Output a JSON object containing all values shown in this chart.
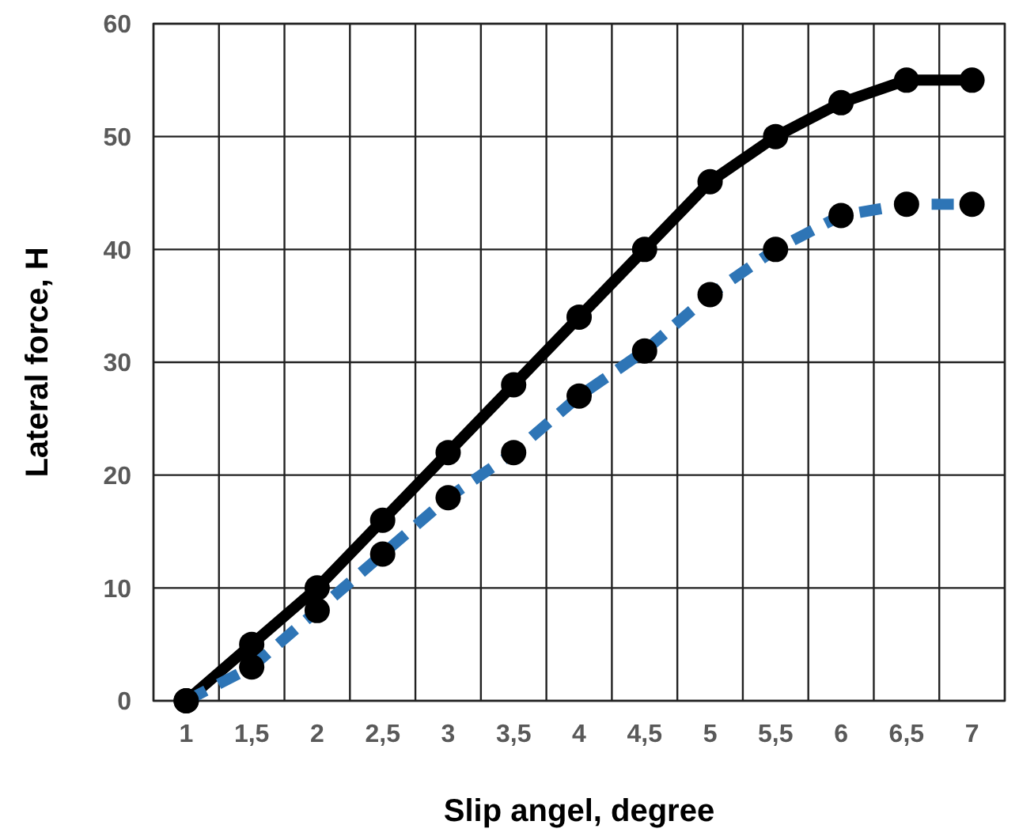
{
  "chart_data": {
    "type": "line",
    "xlabel": "Slip angel, degree",
    "ylabel": "Lateral force, H",
    "categories": [
      "1",
      "1,5",
      "2",
      "2,5",
      "3",
      "3,5",
      "4",
      "4,5",
      "5",
      "5,5",
      "6",
      "6,5",
      "7"
    ],
    "series": [
      {
        "color": "#000000",
        "line_style": "solid",
        "values": [
          0,
          5,
          10,
          16,
          22,
          28,
          34,
          40,
          46,
          50,
          53,
          55,
          55
        ]
      },
      {
        "color": "#2e75b6",
        "line_style": "dashed",
        "values": [
          0,
          3,
          8,
          13,
          18,
          22,
          27,
          31,
          36,
          40,
          43,
          44,
          44
        ]
      }
    ],
    "ylim": [
      0,
      60
    ],
    "yticks": [
      0,
      10,
      20,
      30,
      40,
      50,
      60
    ],
    "grid": true,
    "marker": "circle"
  }
}
